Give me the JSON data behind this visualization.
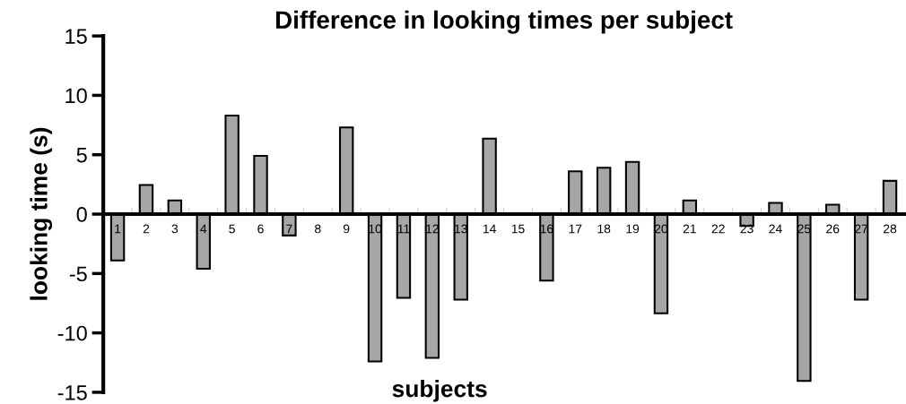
{
  "chart_data": {
    "type": "bar",
    "title": "Difference in looking times per subject",
    "xlabel": "subjects",
    "ylabel": "looking time (s)",
    "categories": [
      "1",
      "2",
      "3",
      "4",
      "5",
      "6",
      "7",
      "8",
      "9",
      "10",
      "11",
      "12",
      "13",
      "14",
      "15",
      "16",
      "17",
      "18",
      "19",
      "20",
      "21",
      "22",
      "23",
      "24",
      "25",
      "26",
      "27",
      "28"
    ],
    "values": [
      -3.9,
      2.45,
      1.15,
      -4.6,
      8.3,
      4.9,
      -1.8,
      0,
      7.3,
      -12.4,
      -7.05,
      -12.1,
      -7.2,
      6.35,
      0,
      -5.6,
      3.6,
      3.9,
      4.4,
      -8.35,
      1.15,
      0,
      -1.0,
      0.95,
      -14.05,
      0.8,
      -7.2,
      2.8
    ],
    "color": "#a6a6a6",
    "ylim": [
      -15,
      15
    ],
    "yticks": [
      -15,
      -10,
      -5,
      0,
      5,
      10,
      15
    ],
    "grid": false,
    "legend": false
  }
}
